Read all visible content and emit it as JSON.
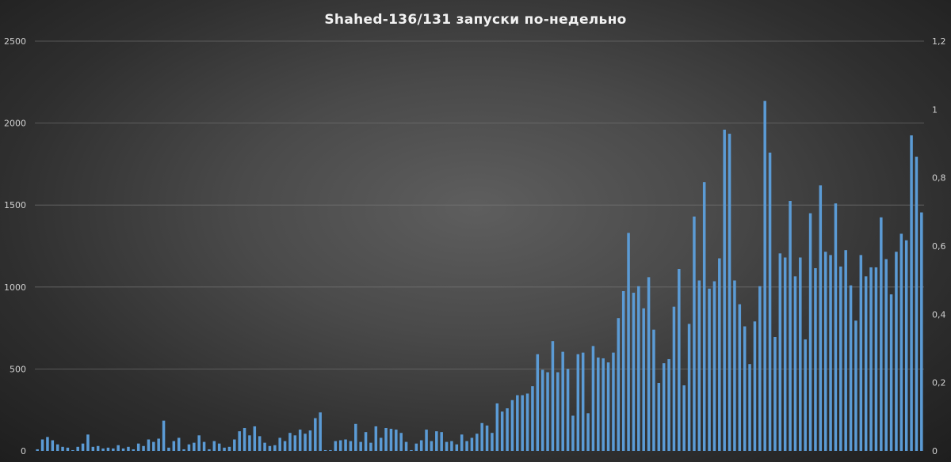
{
  "chart_data": {
    "type": "bar",
    "title": "Shahed-136/131 запуски по-недельно",
    "xlabel": "",
    "ylabel": "",
    "ylim": [
      0,
      2500
    ],
    "yticks": [
      "0",
      "500",
      "1000",
      "1500",
      "2000",
      "2500"
    ],
    "y2lim": [
      0,
      1.2
    ],
    "y2ticks": [
      "0",
      "0,2",
      "0,4",
      "0,6",
      "0,8",
      "1",
      "1,2"
    ],
    "grid": true,
    "legend": "none",
    "bar_color": "#5b9bd5",
    "values": [
      10,
      70,
      85,
      65,
      40,
      25,
      20,
      5,
      25,
      45,
      100,
      25,
      30,
      15,
      20,
      15,
      35,
      15,
      25,
      10,
      45,
      30,
      70,
      55,
      75,
      185,
      20,
      60,
      80,
      10,
      40,
      50,
      95,
      55,
      10,
      60,
      45,
      20,
      25,
      70,
      120,
      140,
      95,
      150,
      90,
      50,
      30,
      35,
      80,
      60,
      110,
      95,
      130,
      105,
      125,
      200,
      235,
      5,
      5,
      60,
      65,
      70,
      60,
      165,
      55,
      115,
      50,
      150,
      80,
      140,
      135,
      130,
      110,
      55,
      5,
      45,
      65,
      130,
      60,
      120,
      115,
      55,
      60,
      40,
      100,
      60,
      80,
      105,
      170,
      155,
      110,
      290,
      240,
      260,
      310,
      340,
      340,
      350,
      395,
      590,
      495,
      480,
      670,
      480,
      605,
      500,
      215,
      590,
      600,
      230,
      640,
      570,
      565,
      540,
      600,
      810,
      975,
      1330,
      965,
      1005,
      870,
      1060,
      740,
      415,
      535,
      560,
      880,
      1110,
      400,
      775,
      1430,
      1040,
      1640,
      990,
      1035,
      1175,
      1960,
      1935,
      1040,
      895,
      760,
      530,
      790,
      1005,
      2135,
      1820,
      695,
      1205,
      1180,
      1525,
      1065,
      1180,
      680,
      1450,
      1115,
      1620,
      1215,
      1195,
      1510,
      1125,
      1225,
      1010,
      795,
      1195,
      1065,
      1120,
      1120,
      1425,
      1170,
      955,
      1215,
      1325,
      1285,
      1925,
      1795,
      1455
    ]
  }
}
